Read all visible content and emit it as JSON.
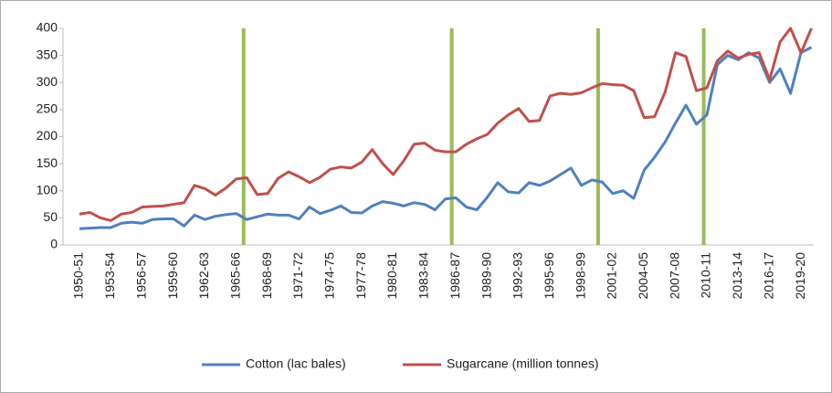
{
  "chart_data": {
    "type": "line",
    "categories": [
      "1950-51",
      null,
      null,
      "1953-54",
      null,
      null,
      "1956-57",
      null,
      null,
      "1959-60",
      null,
      null,
      "1962-63",
      null,
      null,
      "1965-66",
      null,
      null,
      "1968-69",
      null,
      null,
      "1971-72",
      null,
      null,
      "1974-75",
      null,
      null,
      "1977-78",
      null,
      null,
      "1980-81",
      null,
      null,
      "1983-84",
      null,
      null,
      "1986-87",
      null,
      null,
      "1989-90",
      null,
      null,
      "1992-93",
      null,
      null,
      "1995-96",
      null,
      null,
      "1998-99",
      null,
      null,
      "2001-02",
      null,
      null,
      "2004-05",
      null,
      null,
      "2007-08",
      null,
      null,
      "2010-11",
      null,
      null,
      "2013-14",
      null,
      null,
      "2016-17",
      null,
      null,
      "2019-20",
      null
    ],
    "series": [
      {
        "name": "Cotton (lac bales)",
        "color": "#4f81bd",
        "values": [
          30,
          31,
          32,
          32,
          40,
          42,
          40,
          47,
          48,
          48,
          35,
          55,
          47,
          53,
          56,
          58,
          47,
          52,
          57,
          55,
          55,
          48,
          70,
          58,
          64,
          72,
          60,
          59,
          72,
          80,
          77,
          72,
          78,
          75,
          65,
          85,
          87,
          70,
          65,
          88,
          115,
          98,
          96,
          115,
          110,
          118,
          130,
          142,
          110,
          120,
          116,
          95,
          100,
          86,
          138,
          162,
          190,
          225,
          258,
          223,
          240,
          333,
          350,
          342,
          355,
          345,
          300,
          325,
          280,
          355,
          365
        ]
      },
      {
        "name": "Sugarcane (million tonnes)",
        "color": "#c0504d",
        "values": [
          57,
          60,
          50,
          45,
          57,
          60,
          70,
          71,
          72,
          75,
          78,
          110,
          104,
          92,
          105,
          122,
          124,
          93,
          95,
          123,
          135,
          126,
          115,
          125,
          140,
          144,
          142,
          153,
          176,
          150,
          130,
          155,
          186,
          188,
          175,
          172,
          172,
          186,
          196,
          204,
          225,
          240,
          252,
          228,
          230,
          275,
          280,
          278,
          281,
          290,
          298,
          296,
          295,
          285,
          235,
          237,
          282,
          355,
          348,
          285,
          290,
          340,
          358,
          345,
          352,
          355,
          305,
          375,
          400,
          355,
          400
        ]
      }
    ],
    "ylim": [
      0,
      400
    ],
    "yticks": [
      0,
      50,
      100,
      150,
      200,
      250,
      300,
      350,
      400
    ],
    "vlines": {
      "color": "#9bbb59",
      "x": [
        15.7,
        35.6,
        49.6,
        59.7
      ]
    },
    "legend": "bottom"
  }
}
